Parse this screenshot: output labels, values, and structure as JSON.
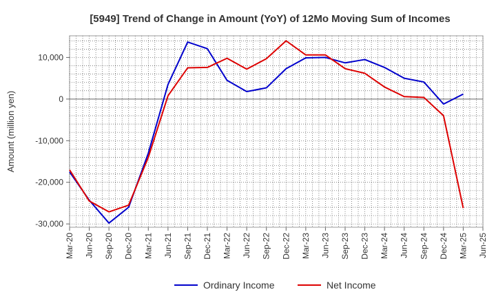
{
  "chart_data": {
    "type": "line",
    "title": "[5949]  Trend of Change in Amount (YoY) of 12Mo Moving Sum of Incomes",
    "xlabel": "",
    "ylabel": "Amount (million yen)",
    "categories": [
      "Mar-20",
      "Jun-20",
      "Sep-20",
      "Dec-20",
      "Mar-21",
      "Jun-21",
      "Sep-21",
      "Dec-21",
      "Mar-22",
      "Jun-22",
      "Sep-22",
      "Dec-22",
      "Mar-23",
      "Jun-23",
      "Sep-23",
      "Dec-23",
      "Mar-24",
      "Jun-24",
      "Sep-24",
      "Dec-24",
      "Mar-25",
      "Jun-25"
    ],
    "yticks": [
      10000,
      0,
      -10000,
      -20000,
      -30000
    ],
    "ytick_labels": [
      "10,000",
      "0",
      "-10,000",
      "-20,000",
      "-30,000"
    ],
    "ylim": [
      -30800,
      15200
    ],
    "grid": true,
    "legend_position": "bottom",
    "series": [
      {
        "name": "Ordinary Income",
        "color": "#0000cc",
        "values": [
          -17500,
          -24300,
          -29800,
          -26000,
          -13000,
          3500,
          13700,
          12100,
          4500,
          1800,
          2700,
          7300,
          9900,
          10000,
          8700,
          9500,
          7600,
          5000,
          4100,
          -1200,
          1200,
          null
        ]
      },
      {
        "name": "Net Income",
        "color": "#dd0000",
        "values": [
          -17000,
          -24500,
          -27100,
          -25500,
          -14000,
          800,
          7500,
          7600,
          9800,
          7200,
          9700,
          14000,
          10600,
          10600,
          7300,
          6200,
          2900,
          600,
          400,
          -4000,
          -26200,
          null
        ]
      }
    ]
  }
}
